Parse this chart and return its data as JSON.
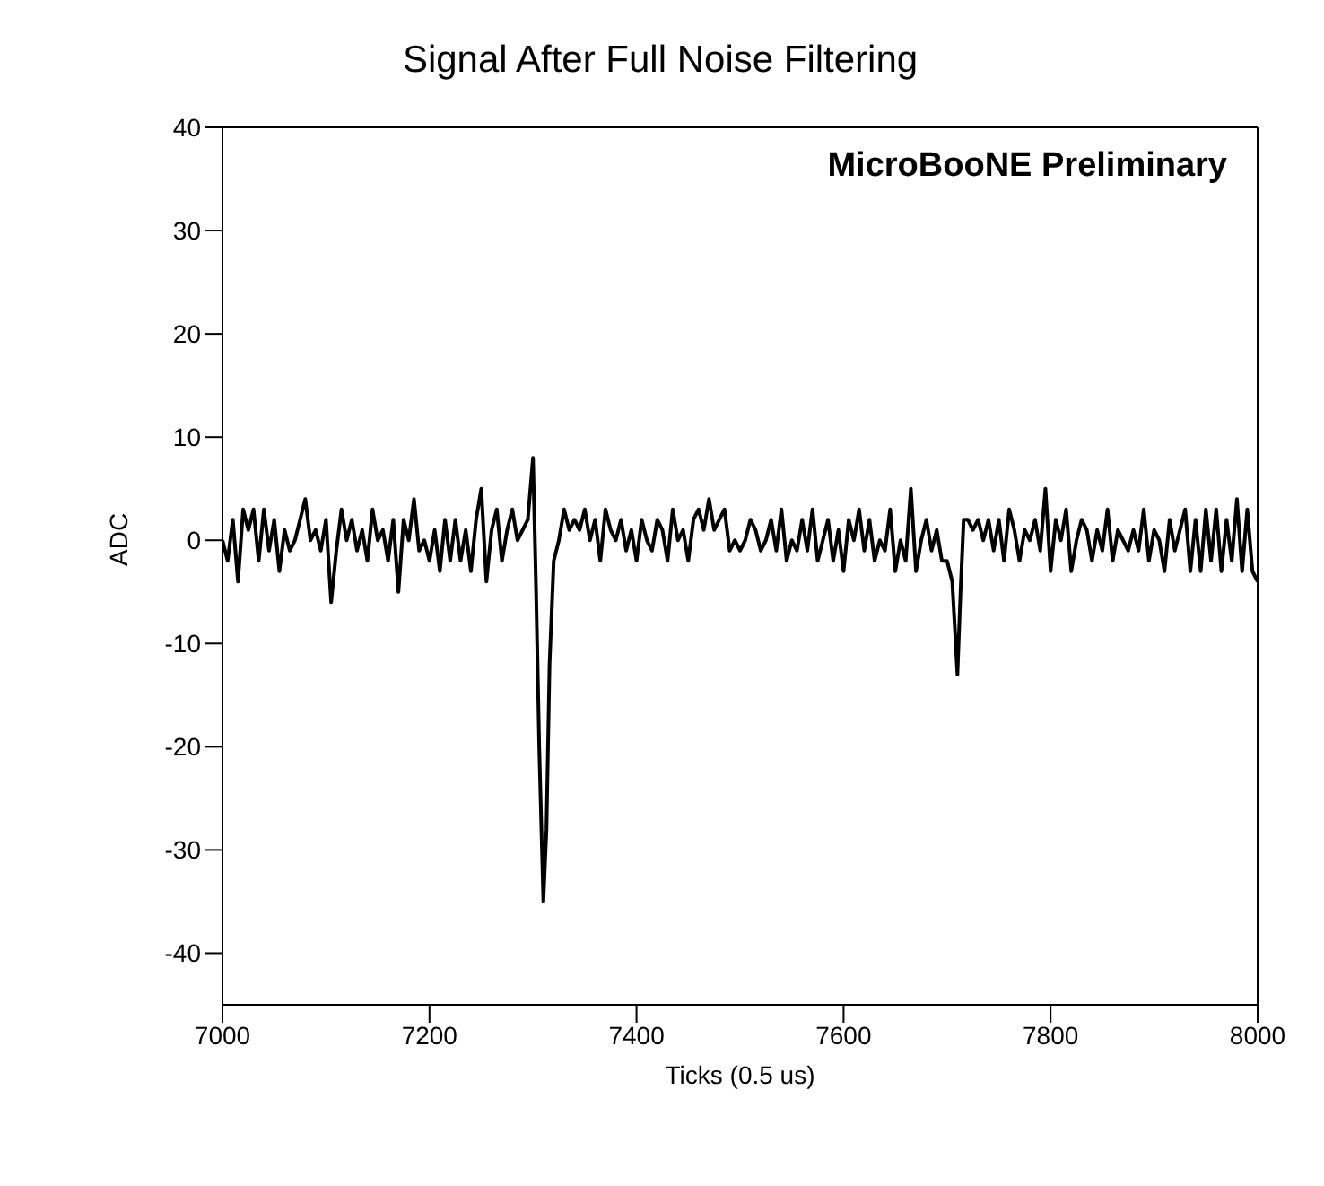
{
  "chart_data": {
    "type": "line",
    "title": "Signal After Full Noise Filtering",
    "xlabel": "Ticks (0.5 us)",
    "ylabel": "ADC",
    "annotations": [
      "MicroBooNE Preliminary"
    ],
    "x": [
      7000,
      7005,
      7010,
      7015,
      7020,
      7025,
      7030,
      7035,
      7040,
      7045,
      7050,
      7055,
      7060,
      7065,
      7070,
      7075,
      7080,
      7085,
      7090,
      7095,
      7100,
      7105,
      7110,
      7115,
      7120,
      7125,
      7130,
      7135,
      7140,
      7145,
      7150,
      7155,
      7160,
      7165,
      7170,
      7175,
      7180,
      7185,
      7190,
      7195,
      7200,
      7205,
      7210,
      7215,
      7220,
      7225,
      7230,
      7235,
      7240,
      7245,
      7250,
      7255,
      7260,
      7265,
      7270,
      7275,
      7280,
      7285,
      7290,
      7295,
      7300,
      7303,
      7306,
      7310,
      7313,
      7316,
      7320,
      7325,
      7330,
      7335,
      7340,
      7345,
      7350,
      7355,
      7360,
      7365,
      7370,
      7375,
      7380,
      7385,
      7390,
      7395,
      7400,
      7405,
      7410,
      7415,
      7420,
      7425,
      7430,
      7435,
      7440,
      7445,
      7450,
      7455,
      7460,
      7465,
      7470,
      7475,
      7480,
      7485,
      7490,
      7495,
      7500,
      7505,
      7510,
      7515,
      7520,
      7525,
      7530,
      7535,
      7540,
      7545,
      7550,
      7555,
      7560,
      7565,
      7570,
      7575,
      7580,
      7585,
      7590,
      7595,
      7600,
      7605,
      7610,
      7615,
      7620,
      7625,
      7630,
      7635,
      7640,
      7645,
      7650,
      7655,
      7660,
      7665,
      7670,
      7675,
      7680,
      7685,
      7690,
      7695,
      7700,
      7705,
      7710,
      7713,
      7716,
      7720,
      7725,
      7730,
      7735,
      7740,
      7745,
      7750,
      7755,
      7760,
      7765,
      7770,
      7775,
      7780,
      7785,
      7790,
      7795,
      7800,
      7805,
      7810,
      7815,
      7820,
      7825,
      7830,
      7835,
      7840,
      7845,
      7850,
      7855,
      7860,
      7865,
      7870,
      7875,
      7880,
      7885,
      7890,
      7895,
      7900,
      7905,
      7910,
      7915,
      7920,
      7925,
      7930,
      7935,
      7940,
      7945,
      7950,
      7955,
      7960,
      7965,
      7970,
      7975,
      7980,
      7985,
      7990,
      7995,
      8000
    ],
    "series": [
      {
        "color": "#000000",
        "values": [
          0,
          -2,
          2,
          -4,
          3,
          1,
          3,
          -2,
          3,
          -1,
          2,
          -3,
          1,
          -1,
          0,
          2,
          4,
          0,
          1,
          -1,
          2,
          -6,
          -1,
          3,
          0,
          2,
          -1,
          1,
          -2,
          3,
          0,
          1,
          -2,
          2,
          -5,
          2,
          0,
          4,
          -1,
          0,
          -2,
          1,
          -3,
          2,
          -2,
          2,
          -2,
          1,
          -3,
          2,
          5,
          -4,
          1,
          3,
          -2,
          1,
          3,
          0,
          1,
          2,
          8,
          -5,
          -20,
          -35,
          -28,
          -12,
          -2,
          0,
          3,
          1,
          2,
          1,
          3,
          0,
          2,
          -2,
          3,
          1,
          0,
          2,
          -1,
          1,
          -2,
          2,
          0,
          -1,
          2,
          1,
          -2,
          3,
          0,
          1,
          -2,
          2,
          3,
          1,
          4,
          1,
          2,
          3,
          -1,
          0,
          -1,
          0,
          2,
          1,
          -1,
          0,
          2,
          -1,
          3,
          -2,
          0,
          -1,
          2,
          -1,
          3,
          -2,
          0,
          2,
          -2,
          1,
          -3,
          2,
          0,
          3,
          -1,
          2,
          -2,
          0,
          -1,
          3,
          -3,
          0,
          -2,
          5,
          -3,
          0,
          2,
          -1,
          1,
          -2,
          -2,
          -4,
          -13,
          -5,
          2,
          2,
          1,
          2,
          0,
          2,
          -1,
          2,
          -2,
          3,
          1,
          -2,
          1,
          0,
          2,
          -1,
          5,
          -3,
          2,
          0,
          3,
          -3,
          0,
          2,
          1,
          -2,
          1,
          -1,
          3,
          -2,
          1,
          0,
          -1,
          1,
          -1,
          3,
          -2,
          1,
          0,
          -3,
          2,
          -1,
          1,
          3,
          -3,
          2,
          -3,
          3,
          -2,
          3,
          -3,
          2,
          -2,
          4,
          -3,
          3,
          -3,
          -4
        ]
      }
    ],
    "xlim": [
      7000,
      8000
    ],
    "xticks": [
      7000,
      7200,
      7400,
      7600,
      7800,
      8000
    ],
    "ylim": [
      -45,
      40
    ],
    "yticks": [
      -40,
      -30,
      -20,
      -10,
      0,
      10,
      20,
      30,
      40
    ],
    "grid": false,
    "marker": "none",
    "line_style": "solid"
  }
}
